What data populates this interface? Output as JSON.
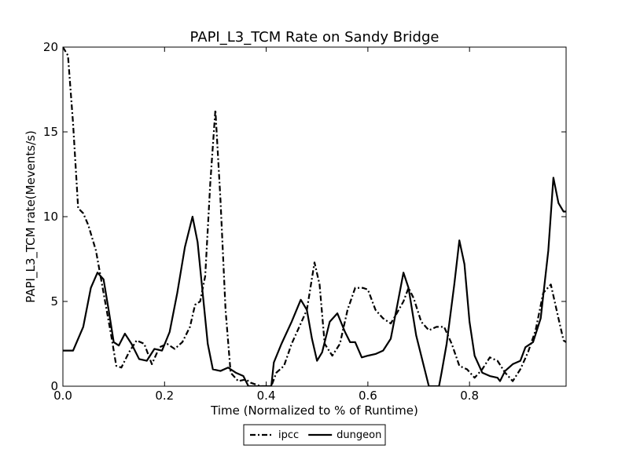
{
  "chart_data": {
    "type": "line",
    "title": "PAPI_L3_TCM Rate on Sandy Bridge",
    "x_label": "Time (Normalized to % of Runtime)",
    "y_label": "PAPI_L3_TCM rate(Mevents/s)",
    "xlim": [
      0,
      0.99
    ],
    "ylim": [
      0,
      20
    ],
    "xticks": [
      {
        "value": 0,
        "label": "0.0"
      },
      0.2,
      0.4,
      0.6,
      0.8
    ],
    "yticks": [
      0,
      5,
      10,
      15,
      20
    ],
    "grid": false,
    "legend": "lower center outside",
    "series": [
      {
        "name": "ipcc",
        "color": "#000000",
        "linestyle": "dashdot",
        "x": [
          0,
          0.01,
          0.02,
          0.03,
          0.04,
          0.05,
          0.065,
          0.08,
          0.095,
          0.105,
          0.115,
          0.13,
          0.145,
          0.16,
          0.175,
          0.19,
          0.205,
          0.22,
          0.235,
          0.25,
          0.26,
          0.27,
          0.28,
          0.29,
          0.3,
          0.31,
          0.32,
          0.33,
          0.345,
          0.36,
          0.37,
          0.39,
          0.41,
          0.42,
          0.435,
          0.45,
          0.465,
          0.48,
          0.495,
          0.505,
          0.515,
          0.53,
          0.545,
          0.56,
          0.575,
          0.59,
          0.6,
          0.615,
          0.63,
          0.645,
          0.655,
          0.67,
          0.68,
          0.69,
          0.705,
          0.72,
          0.735,
          0.75,
          0.765,
          0.78,
          0.795,
          0.81,
          0.825,
          0.84,
          0.855,
          0.87,
          0.885,
          0.9,
          0.915,
          0.93,
          0.945,
          0.96,
          0.975,
          0.985,
          0.99
        ],
        "values": [
          20,
          19.5,
          15.5,
          10.5,
          10.2,
          9.5,
          8,
          5.5,
          3,
          1.2,
          1.1,
          2.0,
          2.7,
          2.5,
          1.3,
          2.3,
          2.5,
          2.2,
          2.6,
          3.5,
          4.8,
          5,
          6.5,
          12,
          16.3,
          11,
          4.5,
          0.8,
          0.3,
          0.4,
          0.2,
          0,
          0,
          0.8,
          1.2,
          2.5,
          3.5,
          4.5,
          7.3,
          6.0,
          2.5,
          1.8,
          2.5,
          4.5,
          5.8,
          5.8,
          5.7,
          4.5,
          4.0,
          3.7,
          4.2,
          5.0,
          5.8,
          5.2,
          3.8,
          3.3,
          3.5,
          3.5,
          2.5,
          1.2,
          1.0,
          0.5,
          1.0,
          1.7,
          1.5,
          0.8,
          0.3,
          1.0,
          2.0,
          3.3,
          5.5,
          6.0,
          4.0,
          2.7,
          2.6
        ]
      },
      {
        "name": "dungeon",
        "color": "#000000",
        "linestyle": "solid",
        "x": [
          0,
          0.02,
          0.04,
          0.055,
          0.068,
          0.08,
          0.09,
          0.1,
          0.11,
          0.122,
          0.135,
          0.15,
          0.165,
          0.18,
          0.195,
          0.21,
          0.225,
          0.24,
          0.255,
          0.265,
          0.275,
          0.285,
          0.295,
          0.31,
          0.325,
          0.34,
          0.355,
          0.365,
          0.41,
          0.415,
          0.43,
          0.45,
          0.468,
          0.48,
          0.49,
          0.5,
          0.51,
          0.525,
          0.54,
          0.555,
          0.565,
          0.575,
          0.588,
          0.6,
          0.615,
          0.63,
          0.645,
          0.658,
          0.67,
          0.68,
          0.695,
          0.71,
          0.72,
          0.74,
          0.745,
          0.755,
          0.77,
          0.78,
          0.79,
          0.8,
          0.81,
          0.825,
          0.84,
          0.855,
          0.86,
          0.87,
          0.885,
          0.9,
          0.91,
          0.925,
          0.94,
          0.955,
          0.965,
          0.975,
          0.985,
          0.99
        ],
        "values": [
          2.1,
          2.1,
          3.5,
          5.8,
          6.7,
          6.3,
          4.5,
          2.6,
          2.4,
          3.1,
          2.5,
          1.6,
          1.5,
          2.2,
          2.1,
          3.2,
          5.5,
          8.2,
          10.0,
          8.5,
          5.5,
          2.5,
          1.0,
          0.9,
          1.1,
          0.8,
          0.6,
          0,
          0,
          1.4,
          2.5,
          3.8,
          5.1,
          4.5,
          2.8,
          1.5,
          2.0,
          3.8,
          4.3,
          3.2,
          2.6,
          2.6,
          1.7,
          1.8,
          1.9,
          2.1,
          2.8,
          4.8,
          6.7,
          5.8,
          3.0,
          1.2,
          0,
          0,
          0.8,
          2.5,
          6.0,
          8.6,
          7.2,
          3.8,
          1.8,
          0.8,
          0.6,
          0.5,
          0.3,
          0.9,
          1.3,
          1.5,
          2.3,
          2.6,
          4.0,
          8.0,
          12.3,
          10.8,
          10.3,
          10.3
        ]
      }
    ]
  }
}
